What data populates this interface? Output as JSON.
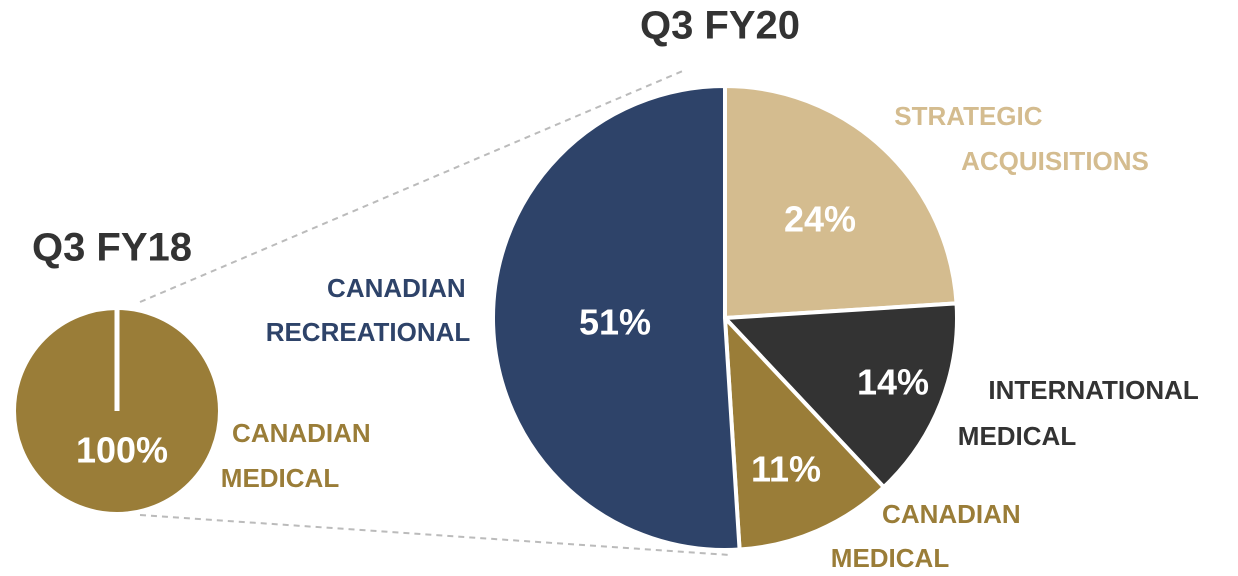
{
  "chart_data": [
    {
      "type": "pie",
      "title": "Q3 FY18",
      "categories": [
        "CANADIAN MEDICAL"
      ],
      "values": [
        100
      ],
      "value_labels": [
        "100%"
      ],
      "colors": [
        "#9a7d38"
      ]
    },
    {
      "type": "pie",
      "title": "Q3 FY20",
      "categories": [
        "STRATEGIC ACQUISITIONS",
        "INTERNATIONAL MEDICAL",
        "CANADIAN MEDICAL",
        "CANADIAN RECREATIONAL"
      ],
      "values": [
        24,
        14,
        11,
        51
      ],
      "value_labels": [
        "24%",
        "14%",
        "11%",
        "51%"
      ],
      "colors": [
        "#d4bc8f",
        "#333333",
        "#9a7d38",
        "#2e4369"
      ]
    }
  ]
}
